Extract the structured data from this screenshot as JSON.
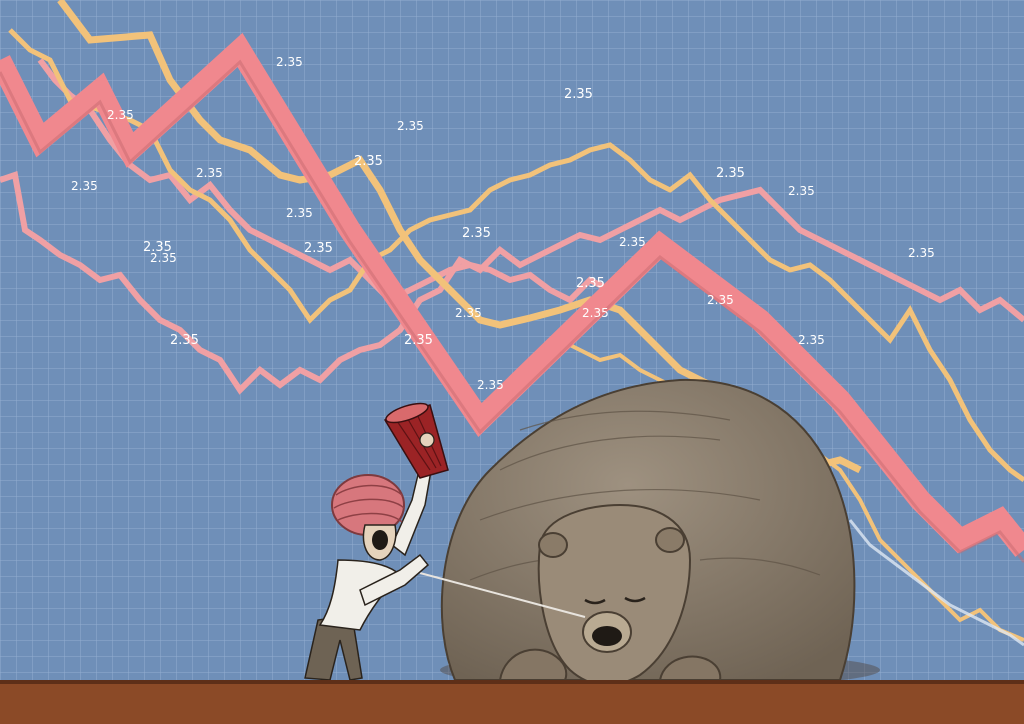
{
  "illustration": {
    "colors": {
      "background": "#6f8fb8",
      "grid_line": "#9fb8d8",
      "pink_line": "#f0888e",
      "orange_line": "#f2c27a",
      "bear": "#8f8170",
      "ground": "#8b4a27",
      "turban": "#d7777d"
    },
    "value_labels": [
      "2.35",
      "2.35",
      "2.35",
      "2.35",
      "2.35",
      "2.35",
      "2.35",
      "2.35",
      "2.35",
      "2.35",
      "2.35",
      "2.35",
      "2.35",
      "2.35",
      "2.35",
      "2.35",
      "2.35",
      "2.35",
      "2.35",
      "2.35",
      "2.35",
      "2.35",
      "2.35",
      "2.35"
    ]
  }
}
